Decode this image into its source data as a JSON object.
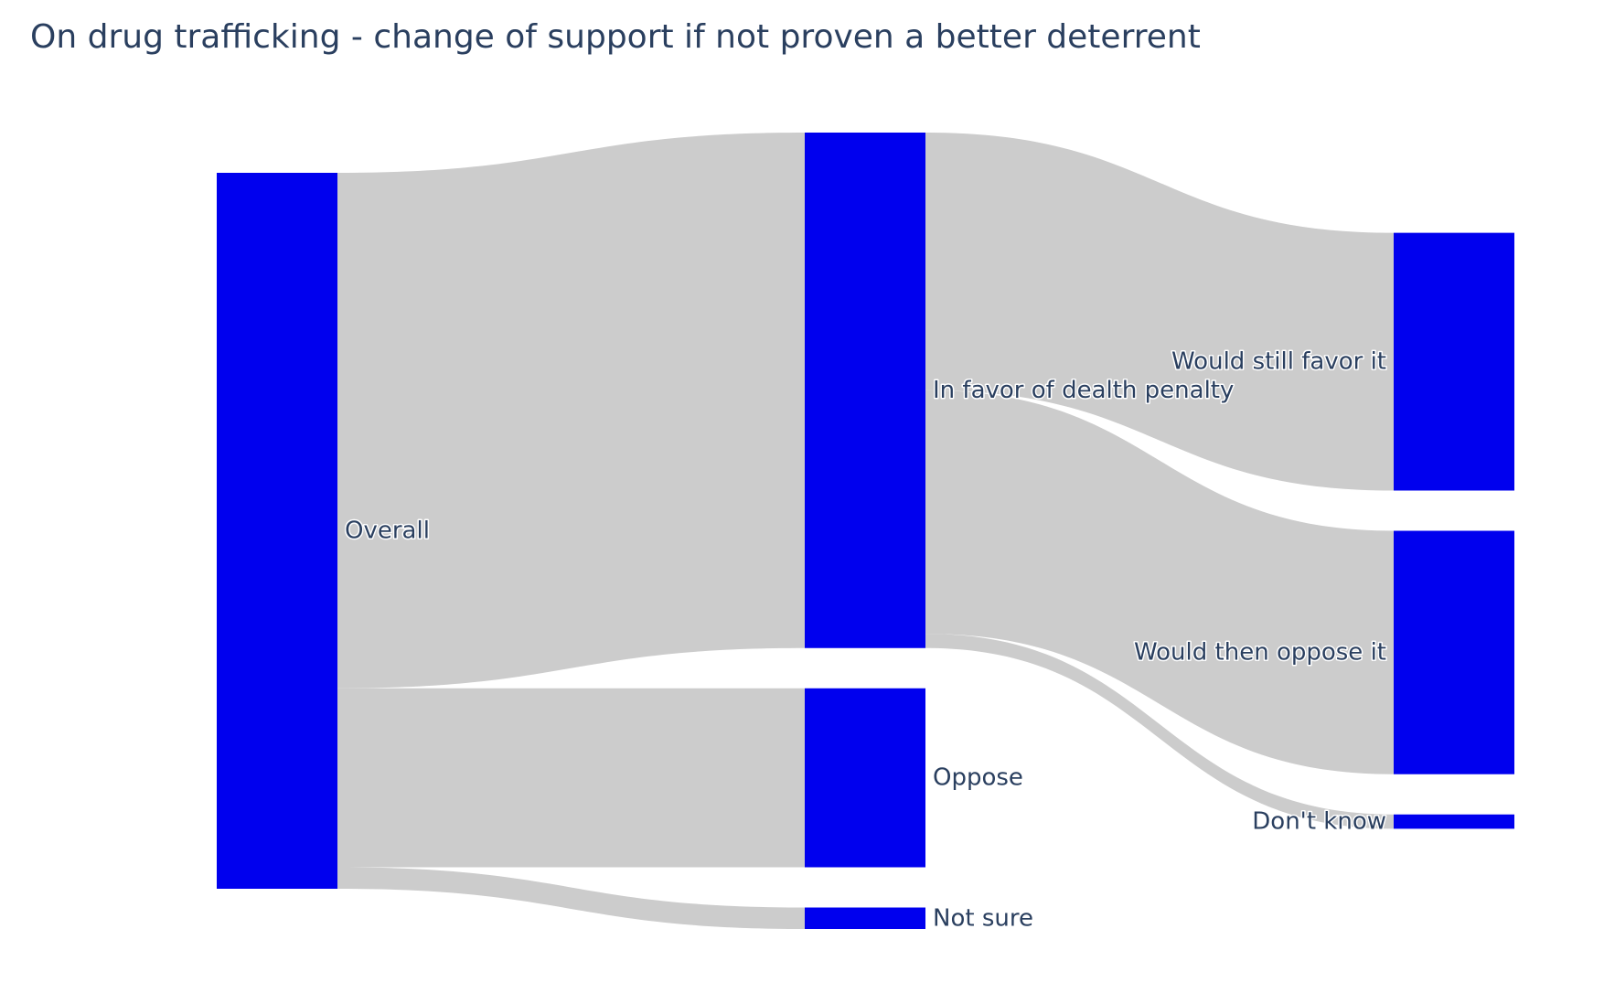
{
  "chart_data": {
    "type": "sankey",
    "title": "On drug trafficking - change of support if not proven a better deterrent",
    "node_color": "#0000ee",
    "link_color": "#cccccc",
    "title_color": "#2a3f5f",
    "nodes": [
      {
        "id": "overall",
        "label": "Overall",
        "column": 0
      },
      {
        "id": "favor",
        "label": "In favor of dealth penalty",
        "column": 1
      },
      {
        "id": "oppose",
        "label": "Oppose",
        "column": 1
      },
      {
        "id": "notsure",
        "label": "Not sure",
        "column": 1
      },
      {
        "id": "still",
        "label": "Would still favor it",
        "column": 2
      },
      {
        "id": "then",
        "label": "Would then oppose it",
        "column": 2
      },
      {
        "id": "dk",
        "label": "Don't know",
        "column": 2
      }
    ],
    "links": [
      {
        "source": "overall",
        "target": "favor",
        "value": 72
      },
      {
        "source": "overall",
        "target": "oppose",
        "value": 25
      },
      {
        "source": "overall",
        "target": "notsure",
        "value": 3
      },
      {
        "source": "favor",
        "target": "still",
        "value": 36
      },
      {
        "source": "favor",
        "target": "then",
        "value": 34
      },
      {
        "source": "favor",
        "target": "dk",
        "value": 2
      }
    ]
  }
}
